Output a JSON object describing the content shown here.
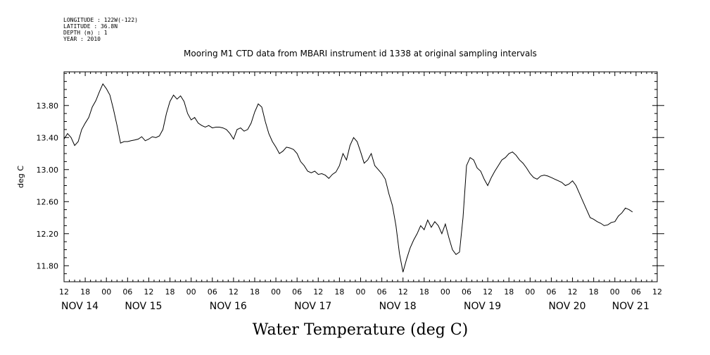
{
  "header": {
    "lines": [
      "LONGITUDE : 122W(-122)",
      "LATITUDE : 36.8N",
      "DEPTH (m) : 1",
      "YEAR : 2010"
    ]
  },
  "chart_data": {
    "type": "line",
    "title": "Mooring M1 CTD data from MBARI instrument id 1338 at original sampling intervals",
    "xlabel": "Water Temperature (deg C)",
    "ylabel": "deg C",
    "ylim": [
      11.6,
      14.22
    ],
    "yticks": [
      "11.80",
      "12.20",
      "12.60",
      "13.00",
      "13.40",
      "13.80"
    ],
    "ytick_values": [
      11.8,
      12.2,
      12.6,
      13.0,
      13.4,
      13.8
    ],
    "xlim_hours": [
      0,
      168
    ],
    "hour_ticks": [
      "12",
      "18",
      "00",
      "06",
      "12",
      "18",
      "00",
      "06",
      "12",
      "18",
      "00",
      "06",
      "12",
      "18",
      "00",
      "06",
      "12",
      "18",
      "00",
      "06",
      "12",
      "18",
      "00",
      "06",
      "12",
      "18",
      "00",
      "06",
      "12"
    ],
    "day_labels": [
      "NOV 14",
      "NOV 15",
      "NOV 16",
      "NOV 17",
      "NOV 18",
      "NOV 19",
      "NOV 20",
      "NOV 21"
    ],
    "day_label_hours": [
      0,
      18,
      42,
      66,
      90,
      114,
      138,
      156
    ],
    "grid": false,
    "series": [
      {
        "values": [
          [
            0,
            13.38
          ],
          [
            1,
            13.45
          ],
          [
            2,
            13.4
          ],
          [
            3,
            13.3
          ],
          [
            4,
            13.35
          ],
          [
            5,
            13.5
          ],
          [
            6,
            13.58
          ],
          [
            7,
            13.65
          ],
          [
            8,
            13.78
          ],
          [
            9,
            13.86
          ],
          [
            10,
            13.97
          ],
          [
            11,
            14.07
          ],
          [
            12,
            14.01
          ],
          [
            13,
            13.93
          ],
          [
            14,
            13.75
          ],
          [
            15,
            13.55
          ],
          [
            16,
            13.33
          ],
          [
            17,
            13.35
          ],
          [
            18,
            13.35
          ],
          [
            19,
            13.36
          ],
          [
            20,
            13.37
          ],
          [
            21,
            13.38
          ],
          [
            22,
            13.41
          ],
          [
            23,
            13.36
          ],
          [
            24,
            13.38
          ],
          [
            25,
            13.41
          ],
          [
            26,
            13.4
          ],
          [
            27,
            13.42
          ],
          [
            28,
            13.5
          ],
          [
            29,
            13.7
          ],
          [
            30,
            13.85
          ],
          [
            31,
            13.93
          ],
          [
            32,
            13.88
          ],
          [
            33,
            13.92
          ],
          [
            34,
            13.85
          ],
          [
            35,
            13.7
          ],
          [
            36,
            13.62
          ],
          [
            37,
            13.65
          ],
          [
            38,
            13.58
          ],
          [
            39,
            13.55
          ],
          [
            40,
            13.53
          ],
          [
            41,
            13.55
          ],
          [
            42,
            13.52
          ],
          [
            43,
            13.53
          ],
          [
            44,
            13.53
          ],
          [
            45,
            13.52
          ],
          [
            46,
            13.5
          ],
          [
            47,
            13.45
          ],
          [
            48,
            13.38
          ],
          [
            49,
            13.5
          ],
          [
            50,
            13.52
          ],
          [
            51,
            13.48
          ],
          [
            52,
            13.5
          ],
          [
            53,
            13.58
          ],
          [
            54,
            13.72
          ],
          [
            55,
            13.82
          ],
          [
            56,
            13.78
          ],
          [
            57,
            13.6
          ],
          [
            58,
            13.45
          ],
          [
            59,
            13.35
          ],
          [
            60,
            13.28
          ],
          [
            61,
            13.2
          ],
          [
            62,
            13.23
          ],
          [
            63,
            13.28
          ],
          [
            64,
            13.27
          ],
          [
            65,
            13.25
          ],
          [
            66,
            13.2
          ],
          [
            67,
            13.1
          ],
          [
            68,
            13.05
          ],
          [
            69,
            12.98
          ],
          [
            70,
            12.96
          ],
          [
            71,
            12.98
          ],
          [
            72,
            12.94
          ],
          [
            73,
            12.95
          ],
          [
            74,
            12.93
          ],
          [
            75,
            12.89
          ],
          [
            76,
            12.94
          ],
          [
            77,
            12.97
          ],
          [
            78,
            13.05
          ],
          [
            79,
            13.2
          ],
          [
            80,
            13.12
          ],
          [
            81,
            13.3
          ],
          [
            82,
            13.4
          ],
          [
            83,
            13.35
          ],
          [
            84,
            13.22
          ],
          [
            85,
            13.08
          ],
          [
            86,
            13.12
          ],
          [
            87,
            13.2
          ],
          [
            88,
            13.05
          ],
          [
            89,
            13.0
          ],
          [
            90,
            12.95
          ],
          [
            91,
            12.88
          ],
          [
            92,
            12.7
          ],
          [
            93,
            12.55
          ],
          [
            94,
            12.3
          ],
          [
            95,
            11.95
          ],
          [
            96,
            11.72
          ],
          [
            97,
            11.88
          ],
          [
            98,
            12.02
          ],
          [
            99,
            12.12
          ],
          [
            100,
            12.2
          ],
          [
            101,
            12.3
          ],
          [
            102,
            12.25
          ],
          [
            103,
            12.37
          ],
          [
            104,
            12.28
          ],
          [
            105,
            12.35
          ],
          [
            106,
            12.3
          ],
          [
            107,
            12.2
          ],
          [
            108,
            12.32
          ],
          [
            109,
            12.15
          ],
          [
            110,
            12.0
          ],
          [
            111,
            11.94
          ],
          [
            112,
            11.97
          ],
          [
            113,
            12.4
          ],
          [
            114,
            13.05
          ],
          [
            115,
            13.15
          ],
          [
            116,
            13.12
          ],
          [
            117,
            13.02
          ],
          [
            118,
            12.98
          ],
          [
            119,
            12.88
          ],
          [
            120,
            12.8
          ],
          [
            121,
            12.9
          ],
          [
            122,
            12.98
          ],
          [
            123,
            13.05
          ],
          [
            124,
            13.12
          ],
          [
            125,
            13.15
          ],
          [
            126,
            13.2
          ],
          [
            127,
            13.22
          ],
          [
            128,
            13.18
          ],
          [
            129,
            13.12
          ],
          [
            130,
            13.08
          ],
          [
            131,
            13.02
          ],
          [
            132,
            12.95
          ],
          [
            133,
            12.9
          ],
          [
            134,
            12.88
          ],
          [
            135,
            12.92
          ],
          [
            136,
            12.93
          ],
          [
            137,
            12.92
          ],
          [
            138,
            12.9
          ],
          [
            139,
            12.88
          ],
          [
            140,
            12.86
          ],
          [
            141,
            12.84
          ],
          [
            142,
            12.8
          ],
          [
            143,
            12.82
          ],
          [
            144,
            12.86
          ],
          [
            145,
            12.8
          ],
          [
            146,
            12.7
          ],
          [
            147,
            12.6
          ],
          [
            148,
            12.5
          ],
          [
            149,
            12.4
          ],
          [
            150,
            12.38
          ],
          [
            151,
            12.35
          ],
          [
            152,
            12.33
          ],
          [
            153,
            12.3
          ],
          [
            154,
            12.31
          ],
          [
            155,
            12.34
          ],
          [
            156,
            12.35
          ],
          [
            157,
            12.42
          ],
          [
            158,
            12.46
          ],
          [
            159,
            12.52
          ],
          [
            160,
            12.5
          ],
          [
            161,
            12.47
          ]
        ]
      }
    ]
  }
}
